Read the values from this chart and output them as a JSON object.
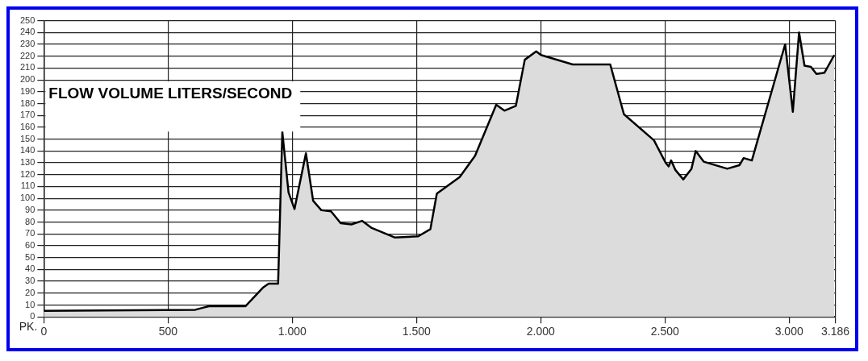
{
  "chart_data": {
    "type": "area",
    "title": "FLOW VOLUME LITERS/SECOND",
    "xlabel": "PK.",
    "x": [
      0,
      610,
      665,
      812,
      884,
      905,
      943,
      960,
      985,
      1009,
      1055,
      1084,
      1117,
      1156,
      1195,
      1238,
      1281,
      1320,
      1412,
      1507,
      1556,
      1582,
      1674,
      1736,
      1821,
      1854,
      1900,
      1936,
      1982,
      2001,
      2129,
      2280,
      2335,
      2456,
      2503,
      2515,
      2525,
      2542,
      2574,
      2607,
      2624,
      2656,
      2751,
      2800,
      2817,
      2850,
      2984,
      3015,
      3040,
      3062,
      3088,
      3110,
      3142,
      3182
    ],
    "series": [
      {
        "color": "#000000",
        "values": [
          5,
          6,
          9,
          9,
          25,
          28,
          28,
          156,
          105,
          91,
          138,
          98,
          90,
          89,
          79,
          78,
          81,
          75,
          67,
          68,
          74,
          104,
          118,
          136,
          179,
          174,
          178,
          217,
          224,
          221,
          213,
          213,
          171,
          149,
          130,
          127,
          132,
          124,
          116,
          125,
          140,
          131,
          125,
          128,
          134,
          132,
          230,
          173,
          240,
          212,
          211,
          205,
          206,
          221
        ]
      }
    ],
    "xlim": [
      0,
      3186
    ],
    "xticks": [
      0,
      500,
      {
        "value": 1000,
        "label": "1.000"
      },
      {
        "value": 1500,
        "label": "1.500"
      },
      {
        "value": 2000,
        "label": "2.000"
      },
      {
        "value": 2500,
        "label": "2.500"
      },
      {
        "value": 3000,
        "label": "3.000"
      },
      {
        "value": 3186,
        "label": "3.186"
      }
    ],
    "ylim": [
      0,
      250
    ],
    "yticks": [
      0,
      10,
      20,
      30,
      40,
      50,
      60,
      70,
      80,
      90,
      100,
      110,
      120,
      130,
      140,
      150,
      160,
      170,
      180,
      190,
      200,
      210,
      220,
      230,
      240,
      250
    ],
    "grid": true,
    "legend": false,
    "marker": "none",
    "line_style": "solid"
  }
}
